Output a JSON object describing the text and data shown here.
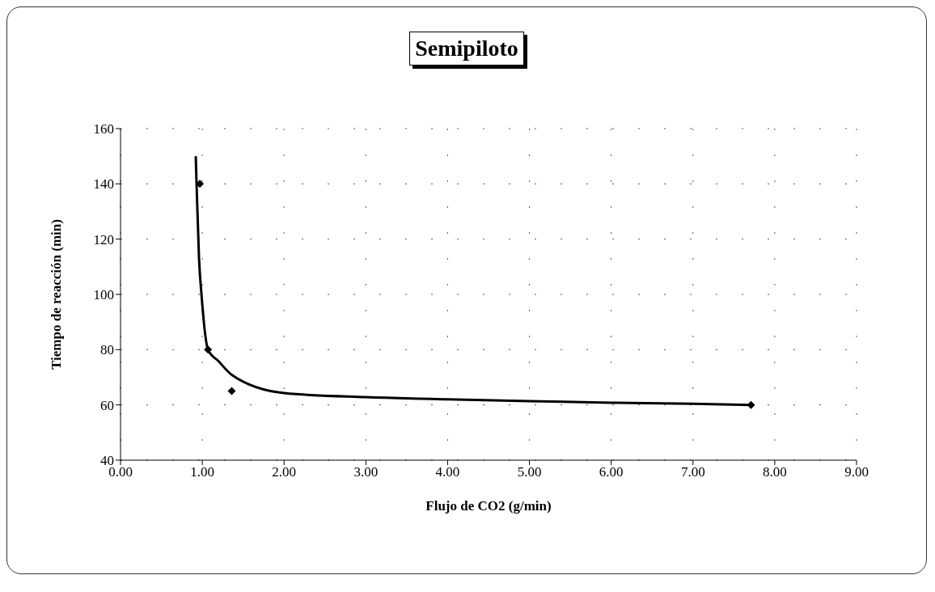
{
  "chart_data": {
    "type": "scatter",
    "title": "Semipiloto",
    "xlabel": "Flujo de CO2 (g/min)",
    "ylabel": "Tiempo de reacción (min)",
    "xlim": [
      0,
      9
    ],
    "xticks": [
      {
        "value": 0,
        "label": "0.00"
      },
      {
        "value": 1,
        "label": "1.00"
      },
      {
        "value": 2,
        "label": "2.00"
      },
      {
        "value": 3,
        "label": "3.00"
      },
      {
        "value": 4,
        "label": "4.00"
      },
      {
        "value": 5,
        "label": "5.00"
      },
      {
        "value": 6,
        "label": "6.00"
      },
      {
        "value": 7,
        "label": "7.00"
      },
      {
        "value": 8,
        "label": "8.00"
      },
      {
        "value": 9,
        "label": "9.00"
      }
    ],
    "ylim": [
      40,
      160
    ],
    "yticks": [
      40,
      60,
      80,
      100,
      120,
      140,
      160
    ],
    "grid": true,
    "legend": false,
    "series": [
      {
        "type": "scatter",
        "color": "#000000",
        "marker": "diamond",
        "x": [
          0.97,
          1.07,
          1.36,
          7.71
        ],
        "values": [
          140,
          80,
          65,
          60
        ]
      },
      {
        "type": "line",
        "color": "#000000",
        "marker": "none",
        "line_style": "solid",
        "x": [
          0.92,
          0.93,
          0.96,
          0.99,
          1.07,
          1.2,
          1.36,
          2.0,
          3.0,
          4.0,
          5.0,
          6.0,
          7.0,
          7.7
        ],
        "values": [
          150,
          140,
          113,
          100,
          80,
          75.8,
          70.9,
          64.3,
          62.8,
          62,
          61.4,
          60.8,
          60.4,
          60
        ]
      }
    ]
  }
}
